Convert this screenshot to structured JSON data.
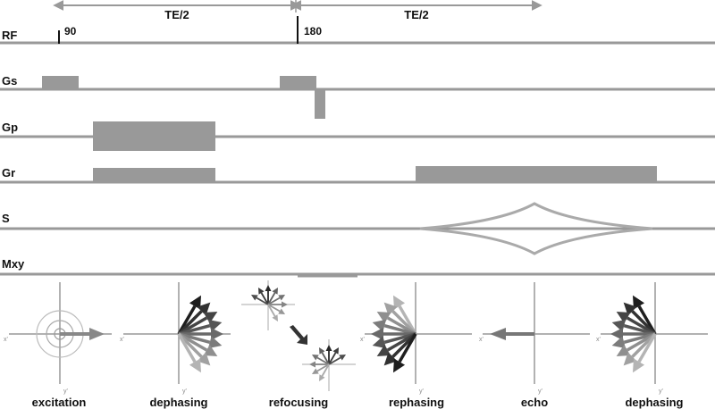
{
  "timing": {
    "te_half_left": "TE/2",
    "te_half_right": "TE/2"
  },
  "rows": [
    {
      "id": "rf",
      "label": "RF"
    },
    {
      "id": "gs",
      "label": "Gs"
    },
    {
      "id": "gp",
      "label": "Gp"
    },
    {
      "id": "gr",
      "label": "Gr"
    },
    {
      "id": "s",
      "label": "S"
    },
    {
      "id": "mxy",
      "label": "Mxy"
    }
  ],
  "rf_pulses": {
    "excite": "90",
    "refocus": "180"
  },
  "phases": [
    {
      "id": "excitation",
      "label": "excitation"
    },
    {
      "id": "dephasing-1",
      "label": "dephasing"
    },
    {
      "id": "refocusing",
      "label": "refocusing"
    },
    {
      "id": "rephasing",
      "label": "rephasing"
    },
    {
      "id": "echo",
      "label": "echo"
    },
    {
      "id": "dephasing-2",
      "label": "dephasing"
    }
  ],
  "axis_labels": {
    "x": "x'",
    "y": "y'"
  },
  "colors": {
    "waveform": "#999999",
    "axis": "#888888",
    "text": "#111111"
  }
}
